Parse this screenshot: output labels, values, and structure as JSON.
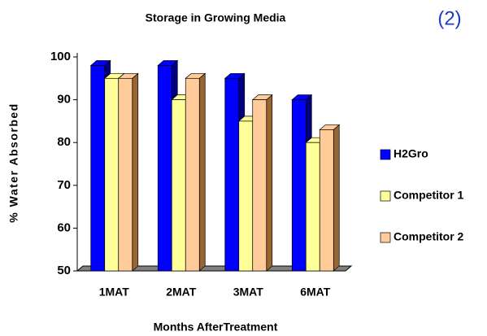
{
  "chart_data": {
    "type": "bar3d",
    "title": "Storage in Growing Media",
    "annotation": "(2)",
    "x_label": "Months AfterTreatment",
    "y_label": "% Water Absorbed",
    "categories": [
      "1MAT",
      "2MAT",
      "3MAT",
      "6MAT"
    ],
    "series": [
      {
        "name": "H2Gro",
        "color": "#0000ff",
        "side": "#000080",
        "values": [
          98,
          98,
          95,
          90
        ]
      },
      {
        "name": "Competitor 1",
        "color": "#ffff99",
        "side": "#999966",
        "values": [
          95,
          90,
          85,
          80
        ]
      },
      {
        "name": "Competitor 2",
        "color": "#ffcc99",
        "side": "#996633",
        "values": [
          95,
          95,
          90,
          83
        ]
      }
    ],
    "ylim": [
      50,
      100
    ],
    "yticks": [
      50,
      60,
      70,
      80,
      90,
      100
    ],
    "legend": "right"
  }
}
